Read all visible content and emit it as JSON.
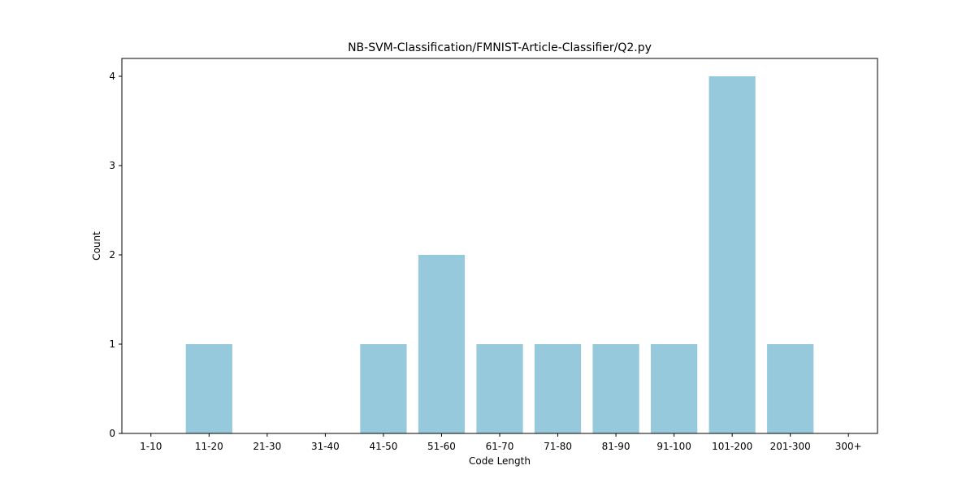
{
  "chart_data": {
    "type": "bar",
    "title": "NB-SVM-Classification/FMNIST-Article-Classifier/Q2.py",
    "xlabel": "Code Length",
    "ylabel": "Count",
    "categories": [
      "1-10",
      "11-20",
      "21-30",
      "31-40",
      "41-50",
      "51-60",
      "61-70",
      "71-80",
      "81-90",
      "91-100",
      "101-200",
      "201-300",
      "300+"
    ],
    "values": [
      0,
      1,
      0,
      0,
      1,
      2,
      1,
      1,
      1,
      1,
      4,
      1,
      0
    ],
    "ylim": [
      0,
      4.2
    ],
    "yticks": [
      0,
      1,
      2,
      3,
      4
    ],
    "bar_color": "#96c9dc",
    "grid": false,
    "legend": "none"
  }
}
